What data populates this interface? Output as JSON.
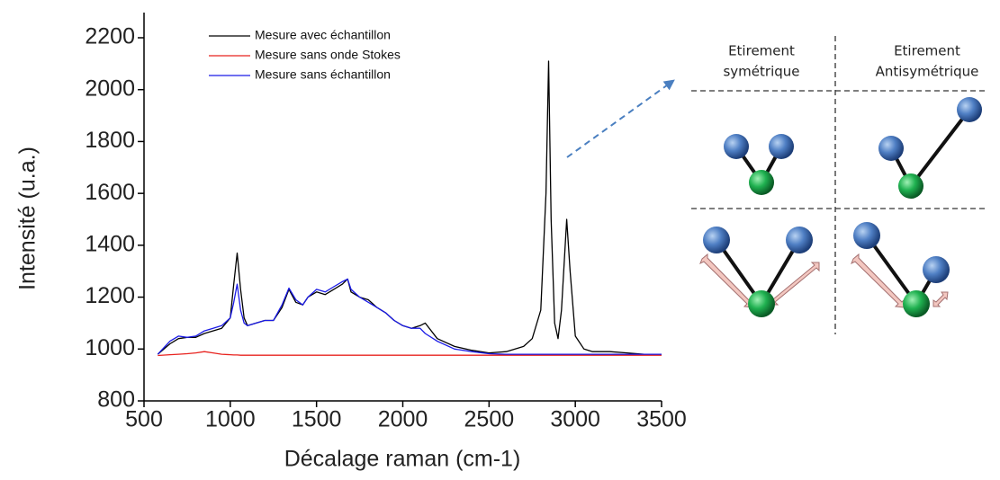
{
  "chart_data": {
    "type": "line",
    "xlabel": "Décalage raman (cm-1)",
    "ylabel": "Intensité (u.a.)",
    "x": [
      580,
      650,
      700,
      750,
      800,
      850,
      900,
      950,
      1000,
      1020,
      1040,
      1060,
      1080,
      1100,
      1150,
      1200,
      1250,
      1300,
      1340,
      1380,
      1420,
      1450,
      1500,
      1550,
      1600,
      1650,
      1680,
      1700,
      1750,
      1800,
      1850,
      1900,
      1950,
      2000,
      2050,
      2100,
      2130,
      2200,
      2300,
      2400,
      2500,
      2600,
      2700,
      2750,
      2800,
      2830,
      2845,
      2860,
      2880,
      2900,
      2920,
      2950,
      2970,
      3000,
      3050,
      3100,
      3200,
      3300,
      3400,
      3500
    ],
    "series": [
      {
        "name": "Mesure avec échantillon",
        "color": "#000000",
        "values": [
          980,
          1020,
          1040,
          1045,
          1045,
          1060,
          1070,
          1080,
          1120,
          1250,
          1370,
          1230,
          1120,
          1090,
          1100,
          1110,
          1110,
          1160,
          1230,
          1180,
          1170,
          1200,
          1220,
          1210,
          1230,
          1250,
          1270,
          1220,
          1200,
          1190,
          1160,
          1140,
          1110,
          1090,
          1080,
          1090,
          1100,
          1040,
          1010,
          995,
          985,
          990,
          1010,
          1040,
          1150,
          1600,
          2110,
          1500,
          1100,
          1040,
          1150,
          1500,
          1300,
          1050,
          1000,
          990,
          990,
          985,
          980,
          980
        ]
      },
      {
        "name": "Mesure sans onde Stokes",
        "color": "#e8231f",
        "values": [
          975,
          978,
          980,
          982,
          985,
          990,
          985,
          980,
          978,
          977,
          977,
          976,
          976,
          976,
          976,
          976,
          976,
          976,
          976,
          976,
          976,
          976,
          976,
          976,
          976,
          976,
          976,
          976,
          976,
          976,
          976,
          976,
          976,
          976,
          976,
          976,
          976,
          976,
          976,
          976,
          976,
          976,
          976,
          976,
          976,
          976,
          976,
          976,
          976,
          976,
          976,
          976,
          976,
          976,
          976,
          976,
          976,
          976,
          976,
          976
        ]
      },
      {
        "name": "Mesure sans échantillon",
        "color": "#1a1ae6",
        "values": [
          980,
          1030,
          1050,
          1045,
          1050,
          1070,
          1080,
          1090,
          1120,
          1180,
          1250,
          1150,
          1100,
          1090,
          1100,
          1110,
          1110,
          1170,
          1235,
          1190,
          1170,
          1200,
          1230,
          1220,
          1240,
          1260,
          1270,
          1230,
          1200,
          1180,
          1160,
          1140,
          1110,
          1090,
          1080,
          1080,
          1060,
          1030,
          1000,
          990,
          982,
          980,
          980,
          980,
          980,
          980,
          980,
          980,
          980,
          980,
          980,
          980,
          980,
          980,
          980,
          980,
          980,
          980,
          980,
          980
        ]
      }
    ],
    "xlim": [
      500,
      3500
    ],
    "xticks": [
      500,
      1000,
      1500,
      2000,
      2500,
      3000,
      3500
    ],
    "ylim": [
      800,
      2200
    ],
    "yticks": [
      800,
      1000,
      1200,
      1400,
      1600,
      1800,
      2000,
      2200
    ],
    "grid": false
  },
  "diagram": {
    "headers": [
      [
        "Etirement",
        "symétrique"
      ],
      [
        "Etirement",
        "Antisymétrique"
      ]
    ]
  }
}
